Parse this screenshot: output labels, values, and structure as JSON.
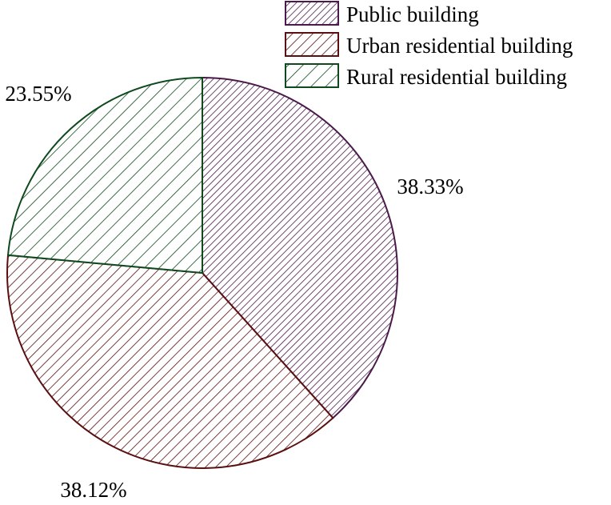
{
  "chart_data": {
    "type": "pie",
    "title": "",
    "slices": [
      {
        "label": "Public building",
        "value": 38.33,
        "value_label": "38.33%",
        "color": "#4a1a4a",
        "hatch": "dense-diagonal"
      },
      {
        "label": "Urban residential building",
        "value": 38.12,
        "value_label": "38.12%",
        "color": "#5a1010",
        "hatch": "medium-diagonal"
      },
      {
        "label": "Rural residential building",
        "value": 23.55,
        "value_label": "23.55%",
        "color": "#0f4a1e",
        "hatch": "wide-diagonal"
      }
    ],
    "start_angle": "12 o'clock",
    "direction": "clockwise",
    "legend_position": "top-right",
    "data_labels": "outside"
  }
}
